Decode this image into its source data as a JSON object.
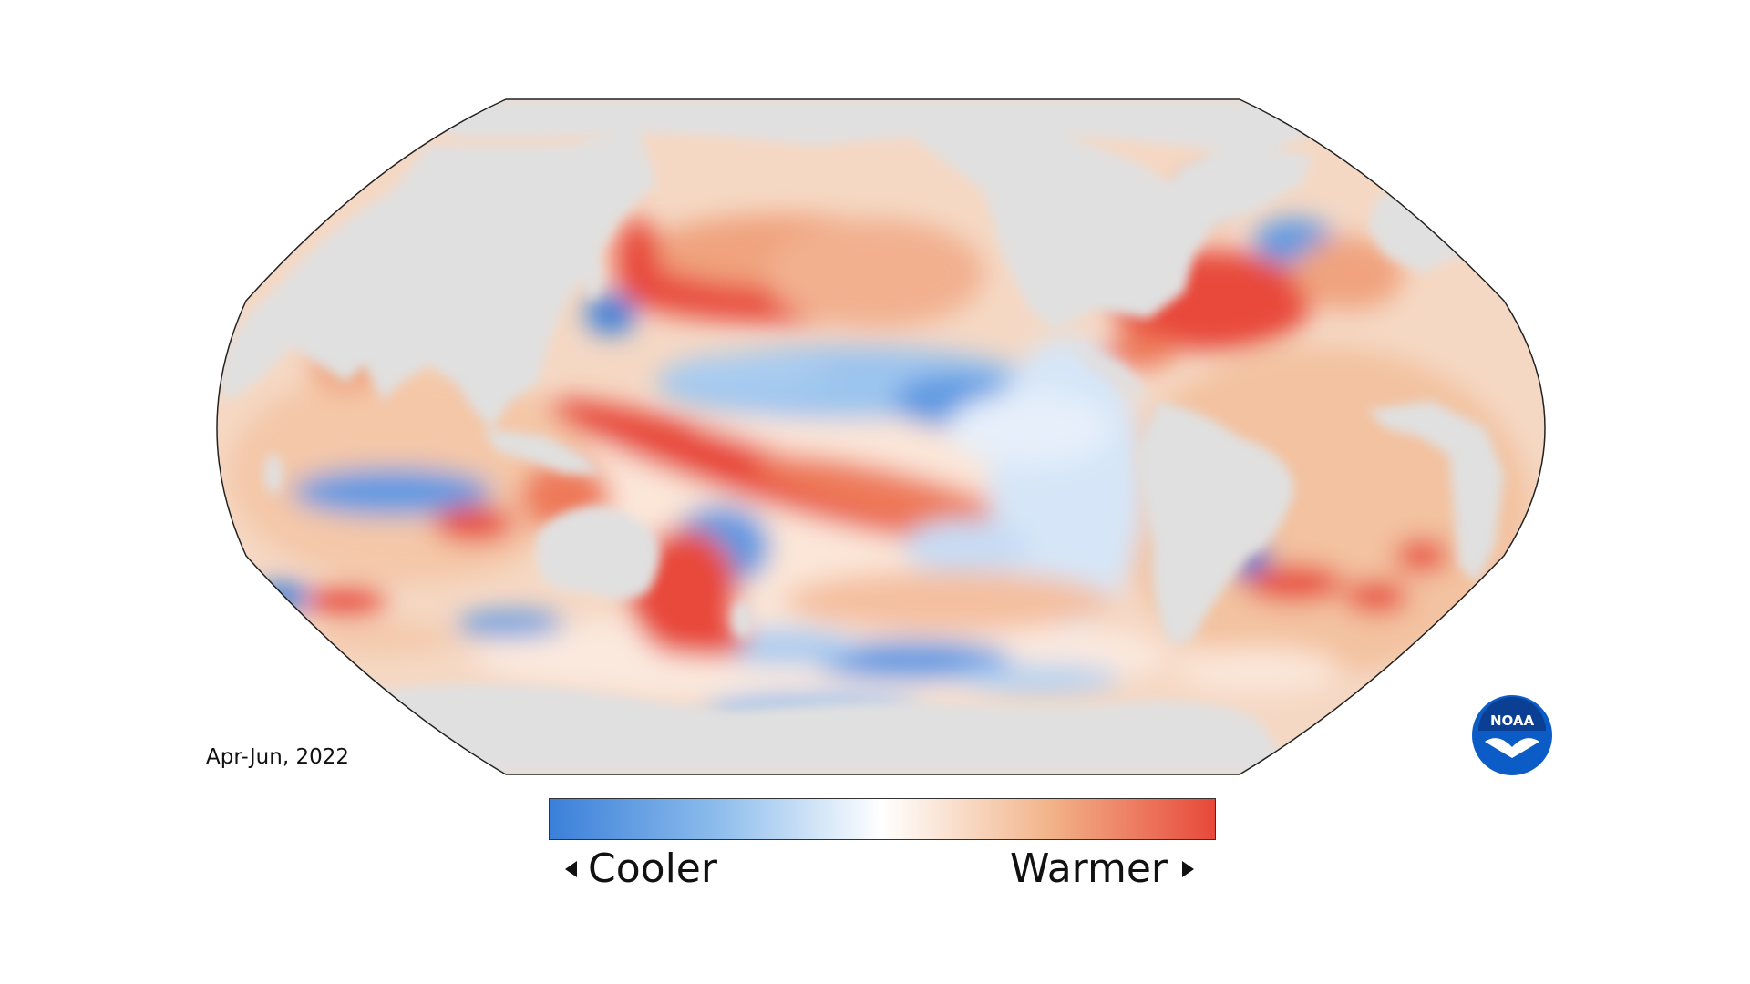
{
  "map": {
    "period_label": "Apr-Jun, 2022",
    "projection": "Robinson",
    "land_color": "#e0e0e0",
    "colors": {
      "cool": "#3a7fd9",
      "neutral": "#ffffff",
      "warm": "#e8483a"
    }
  },
  "legend": {
    "cooler_label": "Cooler",
    "warmer_label": "Warmer",
    "gradient_stops": [
      "#3a7fd9",
      "#8cbcec",
      "#ffffff",
      "#f2b48a",
      "#e8483a"
    ]
  },
  "logo": {
    "text": "NOAA",
    "color": "#0b5cc7"
  }
}
